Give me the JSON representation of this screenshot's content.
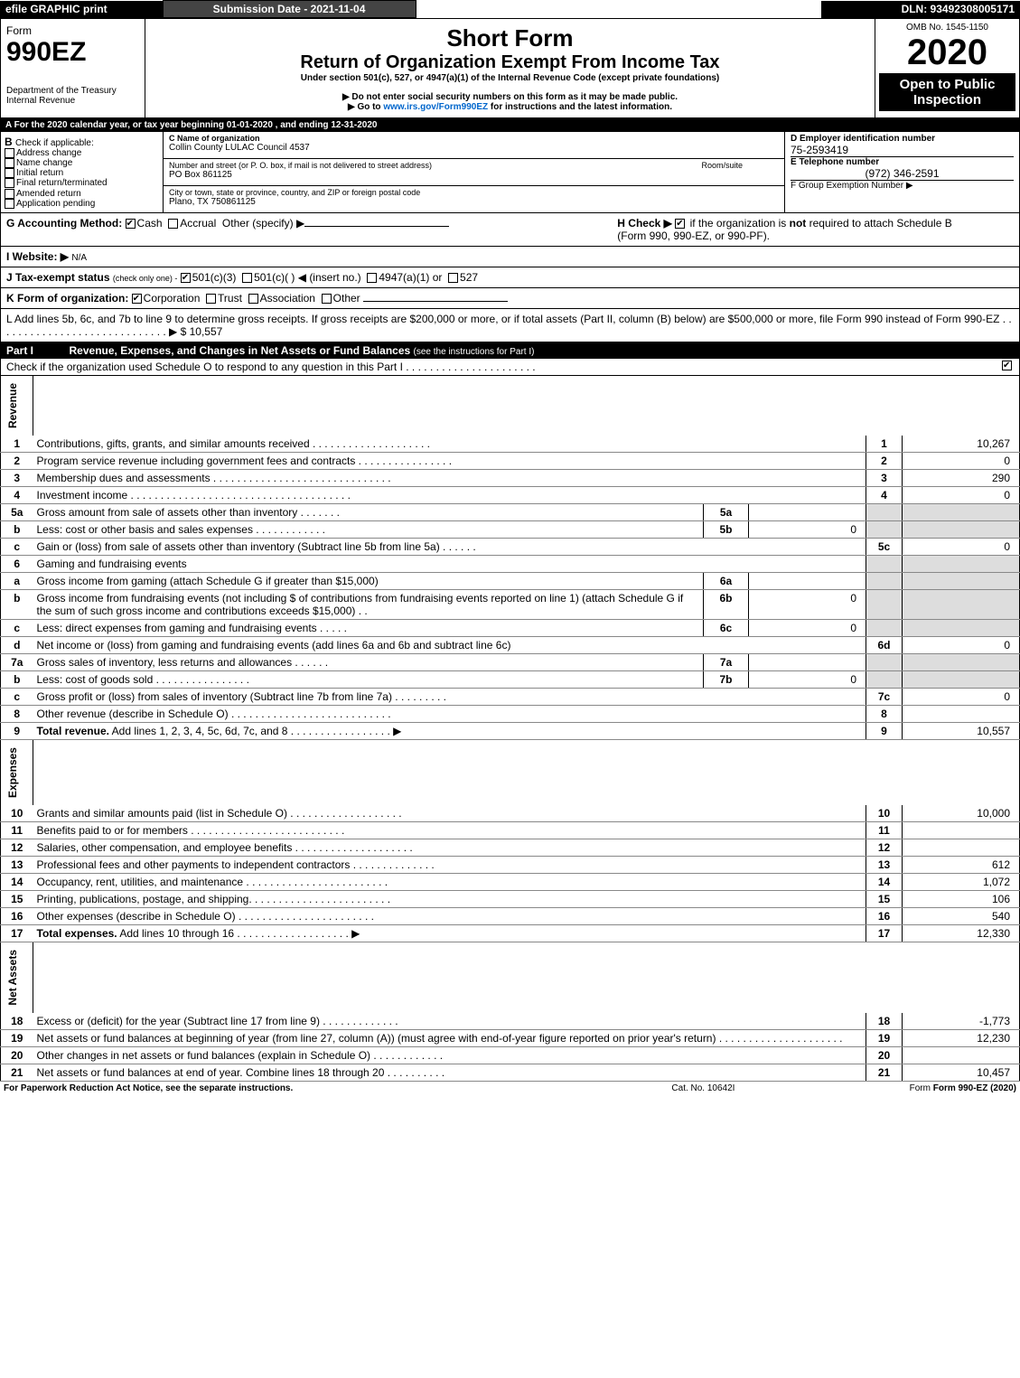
{
  "topbar": {
    "efile": "efile GRAPHIC print",
    "subdate_label": "Submission Date - 2021-11-04",
    "dln": "DLN: 93492308005171"
  },
  "header": {
    "form_word": "Form",
    "form_no": "990EZ",
    "dept1": "Department of the Treasury",
    "dept2": "Internal Revenue",
    "title": "Short Form",
    "subtitle": "Return of Organization Exempt From Income Tax",
    "under": "Under section 501(c), 527, or 4947(a)(1) of the Internal Revenue Code (except private foundations)",
    "warn": "▶ Do not enter social security numbers on this form as it may be made public.",
    "goto_pre": "▶ Go to ",
    "goto_link": "www.irs.gov/Form990EZ",
    "goto_post": " for instructions and the latest information.",
    "omb": "OMB No. 1545-1150",
    "year": "2020",
    "open": "Open to Public Inspection"
  },
  "periodA": "A For the 2020 calendar year, or tax year beginning 01-01-2020 , and ending 12-31-2020",
  "boxB": {
    "label": "B",
    "check_if": "Check if applicable:",
    "addr": "Address change",
    "name": "Name change",
    "init": "Initial return",
    "final": "Final return/terminated",
    "amend": "Amended return",
    "app": "Application pending"
  },
  "boxC": {
    "c_label": "C Name of organization",
    "org_name": "Collin County LULAC Council 4537",
    "street_label": "Number and street (or P. O. box, if mail is not delivered to street address)",
    "room_label": "Room/suite",
    "street": "PO Box 861125",
    "city_label": "City or town, state or province, country, and ZIP or foreign postal code",
    "city": "Plano, TX  750861125"
  },
  "boxD": {
    "d_label": "D Employer identification number",
    "ein": "75-2593419",
    "e_label": "E Telephone number",
    "phone": "(972) 346-2591",
    "f_label": "F Group Exemption Number ▶"
  },
  "lineG": {
    "label": "G Accounting Method:",
    "cash": "Cash",
    "accrual": "Accrual",
    "other": "Other (specify) ▶"
  },
  "lineH": {
    "label_pre": "H  Check ▶ ",
    "label_post1": " if the organization is ",
    "not": "not",
    "label_post2": " required to attach Schedule B",
    "label_post3": "(Form 990, 990-EZ, or 990-PF)."
  },
  "lineI": {
    "label": "I Website: ▶",
    "val": "N/A"
  },
  "lineJ": {
    "label": "J Tax-exempt status",
    "hint": "(check only one) -",
    "c3": "501(c)(3)",
    "c_open": "501(c)(  ) ◀ (insert no.)",
    "a1": "4947(a)(1) or",
    "s527": "527"
  },
  "lineK": {
    "label": "K Form of organization:",
    "corp": "Corporation",
    "trust": "Trust",
    "assoc": "Association",
    "other": "Other"
  },
  "lineL": {
    "text": "L Add lines 5b, 6c, and 7b to line 9 to determine gross receipts. If gross receipts are $200,000 or more, or if total assets (Part II, column (B) below) are $500,000 or more, file Form 990 instead of Form 990-EZ  .  .  .  .  .  .  .  .  .  .  .  .  .  .  .  .  .  .  .  .  .  .  .  .  .  .  .  .  .   ▶ $",
    "amt": "10,557"
  },
  "partI": {
    "tag": "Part I",
    "title": "Revenue, Expenses, and Changes in Net Assets or Fund Balances",
    "hint": "(see the instructions for Part I)",
    "check": "Check if the organization used Schedule O to respond to any question in this Part I  .  .  .  .  .  .  .  .  .  .  .  .  .  .  .  .  .  .  .  .  .  ."
  },
  "sections": {
    "revenue": "Revenue",
    "expenses": "Expenses",
    "net": "Net Assets"
  },
  "rows": [
    {
      "n": "1",
      "t": "Contributions, gifts, grants, and similar amounts received  .  .  .  .  .  .  .  .  .  .  .  .  .  .  .  .  .  .  .  .",
      "k": "1",
      "a": "10,267"
    },
    {
      "n": "2",
      "t": "Program service revenue including government fees and contracts  .  .  .  .  .  .  .  .  .  .  .  .  .  .  .  .",
      "k": "2",
      "a": "0"
    },
    {
      "n": "3",
      "t": "Membership dues and assessments  .  .  .  .  .  .  .  .  .  .  .  .  .  .  .  .  .  .  .  .  .  .  .  .  .  .  .  .  .  .",
      "k": "3",
      "a": "290"
    },
    {
      "n": "4",
      "t": "Investment income  .  .  .  .  .  .  .  .  .  .  .  .  .  .  .  .  .  .  .  .  .  .  .  .  .  .  .  .  .  .  .  .  .  .  .  .  .",
      "k": "4",
      "a": "0"
    },
    {
      "n": "5a",
      "t": "Gross amount from sale of assets other than inventory  .  .  .  .  .  .  .",
      "sk": "5a",
      "sa": ""
    },
    {
      "n": "b",
      "t": "Less: cost or other basis and sales expenses  .  .  .  .  .  .  .  .  .  .  .  .",
      "sk": "5b",
      "sa": "0"
    },
    {
      "n": "c",
      "t": "Gain or (loss) from sale of assets other than inventory (Subtract line 5b from line 5a)  .  .  .  .  .  .",
      "k": "5c",
      "a": "0"
    },
    {
      "n": "6",
      "t": "Gaming and fundraising events"
    },
    {
      "n": "a",
      "t": "Gross income from gaming (attach Schedule G if greater than $15,000)",
      "sk": "6a",
      "sa": ""
    },
    {
      "n": "b",
      "t": "Gross income from fundraising events (not including $                    of contributions from fundraising events reported on line 1) (attach Schedule G if the sum of such gross income and contributions exceeds $15,000)   .  .",
      "sk": "6b",
      "sa": "0"
    },
    {
      "n": "c",
      "t": "Less: direct expenses from gaming and fundraising events  .  .  .  .  .",
      "sk": "6c",
      "sa": "0"
    },
    {
      "n": "d",
      "t": "Net income or (loss) from gaming and fundraising events (add lines 6a and 6b and subtract line 6c)",
      "k": "6d",
      "a": "0"
    },
    {
      "n": "7a",
      "t": "Gross sales of inventory, less returns and allowances  .  .  .  .  .  .",
      "sk": "7a",
      "sa": ""
    },
    {
      "n": "b",
      "t": "Less: cost of goods sold         .  .  .  .  .  .  .  .  .  .  .  .  .  .  .  .",
      "sk": "7b",
      "sa": "0"
    },
    {
      "n": "c",
      "t": "Gross profit or (loss) from sales of inventory (Subtract line 7b from line 7a)  .  .  .  .  .  .  .  .  .",
      "k": "7c",
      "a": "0"
    },
    {
      "n": "8",
      "t": "Other revenue (describe in Schedule O)  .  .  .  .  .  .  .  .  .  .  .  .  .  .  .  .  .  .  .  .  .  .  .  .  .  .  .",
      "k": "8",
      "a": ""
    },
    {
      "n": "9",
      "t": "Total revenue. Add lines 1, 2, 3, 4, 5c, 6d, 7c, and 8   .  .  .  .  .  .  .  .  .  .  .  .  .  .  .  .  .        ▶",
      "k": "9",
      "a": "10,557",
      "bold": true
    }
  ],
  "exp_rows": [
    {
      "n": "10",
      "t": "Grants and similar amounts paid (list in Schedule O)  .  .  .  .  .  .  .  .  .  .  .  .  .  .  .  .  .  .  .",
      "k": "10",
      "a": "10,000"
    },
    {
      "n": "11",
      "t": "Benefits paid to or for members       .  .  .  .  .  .  .  .  .  .  .  .  .  .  .  .  .  .  .  .  .  .  .  .  .  .",
      "k": "11",
      "a": ""
    },
    {
      "n": "12",
      "t": "Salaries, other compensation, and employee benefits .  .  .  .  .  .  .  .  .  .  .  .  .  .  .  .  .  .  .  .",
      "k": "12",
      "a": ""
    },
    {
      "n": "13",
      "t": "Professional fees and other payments to independent contractors  .  .  .  .  .  .  .  .  .  .  .  .  .  .",
      "k": "13",
      "a": "612"
    },
    {
      "n": "14",
      "t": "Occupancy, rent, utilities, and maintenance .  .  .  .  .  .  .  .  .  .  .  .  .  .  .  .  .  .  .  .  .  .  .  .",
      "k": "14",
      "a": "1,072"
    },
    {
      "n": "15",
      "t": "Printing, publications, postage, and shipping.  .  .  .  .  .  .  .  .  .  .  .  .  .  .  .  .  .  .  .  .  .  .  .",
      "k": "15",
      "a": "106"
    },
    {
      "n": "16",
      "t": "Other expenses (describe in Schedule O)     .  .  .  .  .  .  .  .  .  .  .  .  .  .  .  .  .  .  .  .  .  .  .",
      "k": "16",
      "a": "540"
    },
    {
      "n": "17",
      "t": "Total expenses. Add lines 10 through 16     .  .  .  .  .  .  .  .  .  .  .  .  .  .  .  .  .  .  .       ▶",
      "k": "17",
      "a": "12,330",
      "bold": true
    }
  ],
  "net_rows": [
    {
      "n": "18",
      "t": "Excess or (deficit) for the year (Subtract line 17 from line 9)       .  .  .  .  .  .  .  .  .  .  .  .  .",
      "k": "18",
      "a": "-1,773"
    },
    {
      "n": "19",
      "t": "Net assets or fund balances at beginning of year (from line 27, column (A)) (must agree with end-of-year figure reported on prior year's return) .  .  .  .  .  .  .  .  .  .  .  .  .  .  .  .  .  .  .  .  .",
      "k": "19",
      "a": "12,230"
    },
    {
      "n": "20",
      "t": "Other changes in net assets or fund balances (explain in Schedule O) .  .  .  .  .  .  .  .  .  .  .  .",
      "k": "20",
      "a": ""
    },
    {
      "n": "21",
      "t": "Net assets or fund balances at end of year. Combine lines 18 through 20 .  .  .  .  .  .  .  .  .  .",
      "k": "21",
      "a": "10,457"
    }
  ],
  "footer": {
    "pra": "For Paperwork Reduction Act Notice, see the separate instructions.",
    "cat": "Cat. No. 10642I",
    "form": "Form 990-EZ (2020)"
  }
}
